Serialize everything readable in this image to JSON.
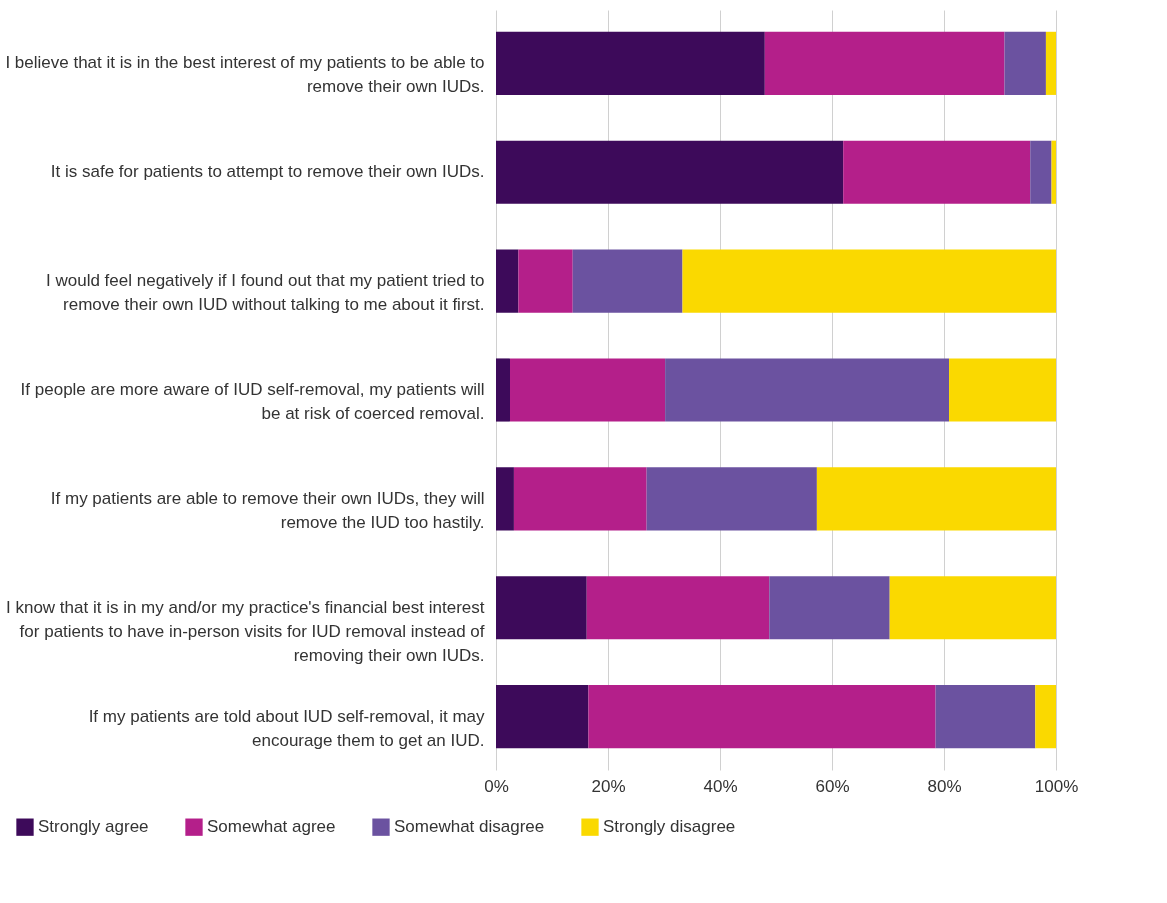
{
  "chart_data": {
    "type": "bar",
    "orientation": "horizontal",
    "stacked": true,
    "categories": [
      "I believe that it is in the best interest of my patients to be able to remove their own IUDs.",
      "It is safe for patients to attempt to remove their own IUDs.",
      "I would feel negatively if I found out that my patient tried to remove their own IUD without talking to me about it first.",
      "If people are more aware of IUD self-removal, my patients will be at risk of coerced removal.",
      "If my patients are able to remove their own IUDs, they will remove the IUD too hastily.",
      "I know that it is in my and/or my practice's financial best interest for patients to have in-person visits for IUD removal instead of removing their own IUDs.",
      "If my patients are told about IUD self-removal, it may encourage them to get an IUD."
    ],
    "series": [
      {
        "name": "Strongly agree",
        "color": "#3d0a5a",
        "values": [
          48,
          62,
          4,
          2.5,
          3.2,
          16.2,
          16.5
        ]
      },
      {
        "name": "Somewhat agree",
        "color": "#b41f8a",
        "values": [
          42.8,
          33.4,
          9.7,
          27.7,
          23.7,
          32.6,
          62
        ]
      },
      {
        "name": "Somewhat disagree",
        "color": "#6b52a0",
        "values": [
          7.4,
          3.8,
          19.6,
          50.7,
          30.4,
          21.5,
          17.8
        ]
      },
      {
        "name": "Strongly disagree",
        "color": "#fad900",
        "values": [
          1.8,
          0.8,
          66.7,
          19.1,
          42.7,
          29.7,
          3.7
        ]
      }
    ],
    "xlim": [
      0,
      100
    ],
    "xticks": [
      {
        "value": 0,
        "label": "0%"
      },
      {
        "value": 20,
        "label": "20%"
      },
      {
        "value": 40,
        "label": "40%"
      },
      {
        "value": 60,
        "label": "60%"
      },
      {
        "value": 80,
        "label": "80%"
      },
      {
        "value": 100,
        "label": "100%"
      }
    ],
    "grid": "x",
    "legend": "bottom"
  }
}
